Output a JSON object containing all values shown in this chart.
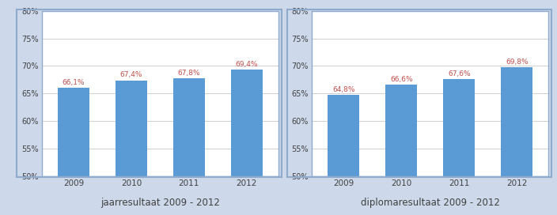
{
  "chart1": {
    "categories": [
      "2009",
      "2010",
      "2011",
      "2012"
    ],
    "values": [
      66.1,
      67.4,
      67.8,
      69.4
    ],
    "labels": [
      "66,1%",
      "67,4%",
      "67,8%",
      "69,4%"
    ],
    "title": "jaarresultaat 2009 - 2012",
    "bar_color": "#5b9bd5",
    "ylim": [
      50,
      80
    ],
    "yticks": [
      50,
      55,
      60,
      65,
      70,
      75,
      80
    ],
    "ytick_labels": [
      "50%",
      "55%",
      "60%",
      "65%",
      "70%",
      "75%",
      "80%"
    ]
  },
  "chart2": {
    "categories": [
      "2009",
      "2010",
      "2011",
      "2012"
    ],
    "values": [
      64.8,
      66.6,
      67.6,
      69.8
    ],
    "labels": [
      "64,8%",
      "66,6%",
      "67,6%",
      "69,8%"
    ],
    "title": "diplomaresultaat 2009 - 2012",
    "bar_color": "#5b9bd5",
    "ylim": [
      50,
      80
    ],
    "yticks": [
      50,
      55,
      60,
      65,
      70,
      75,
      80
    ],
    "ytick_labels": [
      "50%",
      "55%",
      "60%",
      "65%",
      "70%",
      "75%",
      "80%"
    ]
  },
  "plot_bg_color": "#ffffff",
  "outer_bg": "#cdd9ea",
  "title_color": "#c0504d",
  "label_color": "#c0504d",
  "grid_color": "#c8c8c8",
  "border_color": "#8eaacc",
  "spine_color": "#404040",
  "tick_color": "#404040",
  "title_font_color": "#404040"
}
